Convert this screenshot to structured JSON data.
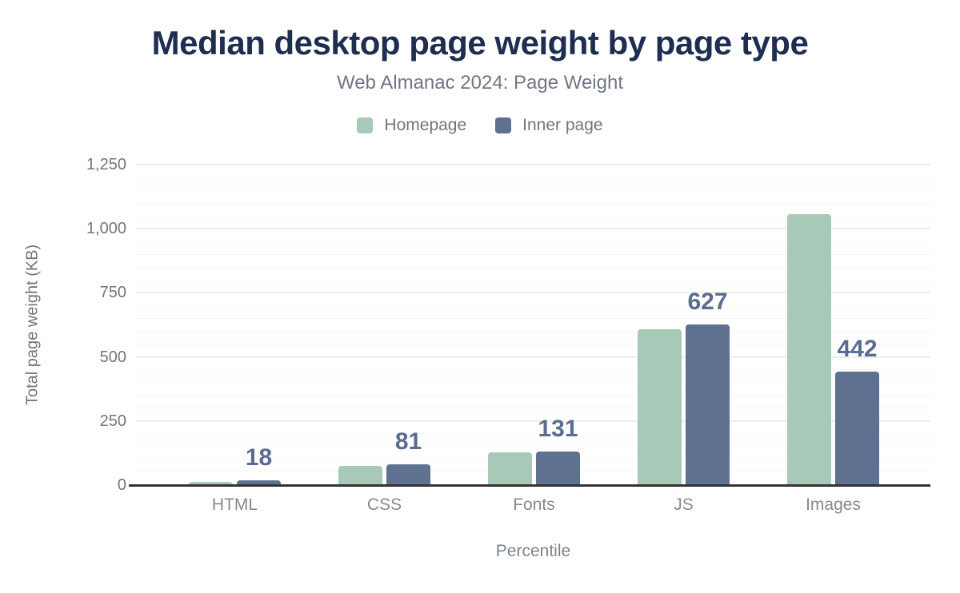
{
  "header": {
    "title": "Median desktop page weight by page type",
    "subtitle": "Web Almanac 2024: Page Weight"
  },
  "chart_data": {
    "type": "bar",
    "categories": [
      "HTML",
      "CSS",
      "Fonts",
      "JS",
      "Images"
    ],
    "series": [
      {
        "name": "Homepage",
        "color": "#a8c9b7",
        "values": [
          14,
          76,
          128,
          608,
          1058
        ],
        "data_labels": null
      },
      {
        "name": "Inner page",
        "color": "#5f7190",
        "values": [
          18,
          81,
          131,
          627,
          442
        ],
        "data_labels": [
          "18",
          "81",
          "131",
          "627",
          "442"
        ]
      }
    ],
    "title": "Median desktop page weight by page type",
    "subtitle": "Web Almanac 2024: Page Weight",
    "xlabel": "Percentile",
    "ylabel": "Total page weight (KB)",
    "ylim": [
      0,
      1250
    ],
    "yticks": [
      0,
      250,
      500,
      750,
      1000,
      1250
    ],
    "ytick_labels": [
      "0",
      "250",
      "500",
      "750",
      "1,000",
      "1,250"
    ],
    "minor_grid_step": 50,
    "major_grid_step": 250,
    "grid": true,
    "legend_position": "top",
    "colors": {
      "title_text": "#1e2d50",
      "data_label_text": "#5a6c90",
      "axis_line": "#333333",
      "major_grid": "#eeeeee",
      "minor_grid": "#f6f6f6"
    }
  }
}
